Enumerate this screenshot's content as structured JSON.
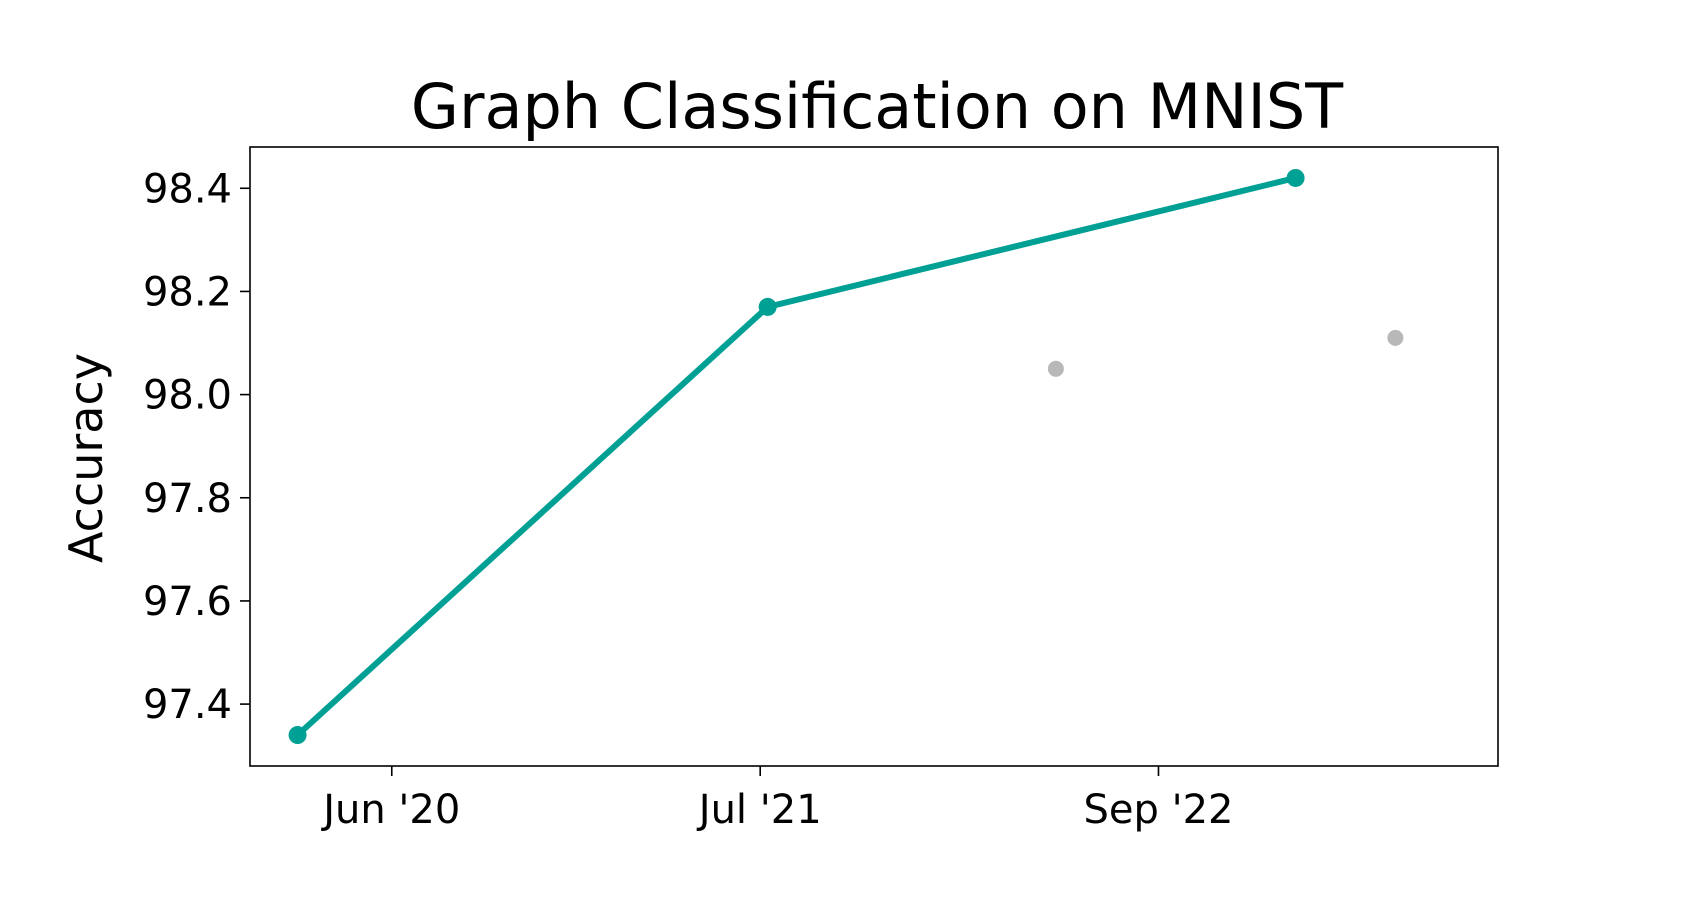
{
  "chart_data": {
    "type": "line",
    "title": "Graph Classification on MNIST",
    "xlabel": "",
    "ylabel": "Accuracy",
    "x_axis_type": "date",
    "xlim": [
      "2020-01-01",
      "2023-08-31"
    ],
    "ylim": [
      97.28,
      98.48
    ],
    "x_ticks": [
      {
        "value": "2020-06-01",
        "label": "Jun '20"
      },
      {
        "value": "2021-07-01",
        "label": "Jul '21"
      },
      {
        "value": "2022-09-01",
        "label": "Sep '22"
      }
    ],
    "y_ticks": [
      {
        "value": 97.4,
        "label": "97.4"
      },
      {
        "value": 97.6,
        "label": "97.6"
      },
      {
        "value": 97.8,
        "label": "97.8"
      },
      {
        "value": 98.0,
        "label": "98.0"
      },
      {
        "value": 98.2,
        "label": "98.2"
      },
      {
        "value": 98.4,
        "label": "98.4"
      }
    ],
    "grid": false,
    "legend": "none",
    "series": [
      {
        "role": "state-of-the-art",
        "color": "#00a095",
        "connected": true,
        "points": [
          {
            "x": "2020-02-21",
            "y": 97.34
          },
          {
            "x": "2021-07-09",
            "y": 98.17
          },
          {
            "x": "2023-01-26",
            "y": 98.42
          }
        ]
      },
      {
        "role": "other",
        "color": "#b8b8b8",
        "connected": false,
        "points": [
          {
            "x": "2022-05-14",
            "y": 98.05
          },
          {
            "x": "2023-05-13",
            "y": 98.11
          }
        ]
      }
    ]
  }
}
